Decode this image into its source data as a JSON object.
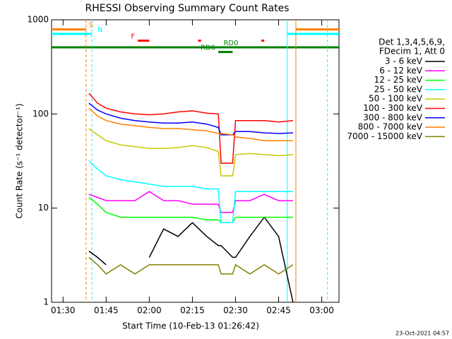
{
  "chart_data": {
    "type": "line",
    "title": "RHESSI Observing Summary Count Rates",
    "xlabel": "Start Time (10-Feb-13 01:26:42)",
    "ylabel": "Count Rate (s⁻¹ detector⁻¹)",
    "footer": "23-Oct-2021 04:57",
    "legend_title": [
      "Det 1,3,4,5,6,9,",
      "FDecim 1, Att 0"
    ],
    "log_y": true,
    "xlim": [
      "01:26",
      "03:06"
    ],
    "xticks": [
      "01:30",
      "01:45",
      "02:00",
      "02:15",
      "02:30",
      "02:45",
      "03:00"
    ],
    "ylim": [
      1,
      1000
    ],
    "yticks": [
      1,
      10,
      100,
      1000
    ],
    "x": [
      "01:39",
      "01:42",
      "01:45",
      "01:50",
      "01:55",
      "02:00",
      "02:05",
      "02:10",
      "02:15",
      "02:20",
      "02:24",
      "02:25",
      "02:29",
      "02:30",
      "02:35",
      "02:40",
      "02:45",
      "02:50"
    ],
    "series": [
      {
        "name": "3 - 6 keV",
        "color": "#000000",
        "values": [
          3.5,
          3,
          2.5,
          null,
          null,
          3,
          6,
          5,
          7,
          5,
          4,
          4,
          3,
          3,
          5,
          8,
          5,
          1
        ]
      },
      {
        "name": "6 - 12 keV",
        "color": "#ff00ff",
        "values": [
          14,
          13,
          12,
          12,
          12,
          15,
          12,
          12,
          11,
          11,
          11,
          9,
          9,
          12,
          12,
          14,
          12,
          12
        ]
      },
      {
        "name": "12 - 25 keV",
        "color": "#00ff00",
        "values": [
          13,
          11,
          9,
          8,
          8,
          8,
          8,
          8,
          8,
          7.5,
          7.5,
          7,
          7,
          8,
          8,
          8,
          8,
          8
        ]
      },
      {
        "name": "25 - 50 keV",
        "color": "#00ffff",
        "values": [
          32,
          26,
          22,
          20,
          19,
          18,
          17,
          17,
          17,
          16,
          16,
          7,
          7,
          15,
          15,
          15,
          15,
          15
        ]
      },
      {
        "name": "50 - 100 keV",
        "color": "#c8c800",
        "values": [
          70,
          60,
          52,
          47,
          45,
          43,
          43,
          44,
          46,
          44,
          40,
          22,
          22,
          37,
          38,
          37,
          36,
          37
        ]
      },
      {
        "name": "100 - 300 keV",
        "color": "#ff0000",
        "values": [
          165,
          130,
          115,
          105,
          100,
          98,
          100,
          105,
          108,
          102,
          100,
          30,
          30,
          85,
          85,
          85,
          82,
          85
        ]
      },
      {
        "name": "300 - 800 keV",
        "color": "#0000ff",
        "values": [
          130,
          110,
          100,
          90,
          85,
          82,
          80,
          80,
          82,
          78,
          72,
          60,
          60,
          65,
          65,
          63,
          62,
          63
        ]
      },
      {
        "name": "800 - 7000 keV",
        "color": "#ff8000",
        "values": [
          115,
          95,
          85,
          78,
          75,
          72,
          70,
          70,
          68,
          66,
          62,
          62,
          60,
          57,
          55,
          52,
          52,
          52
        ]
      },
      {
        "name": "7000 - 15000 keV",
        "color": "#808000",
        "values": [
          3,
          2.5,
          2,
          2.5,
          2,
          2.5,
          2.5,
          2.5,
          2.5,
          2.5,
          2.5,
          2,
          2,
          2.5,
          2,
          2.5,
          2,
          2.5
        ]
      }
    ],
    "flags": [
      {
        "label": "S",
        "color": "#ff8000",
        "level": 790,
        "spans": [
          [
            "01:26",
            "01:38"
          ],
          [
            "02:51",
            "03:06"
          ]
        ]
      },
      {
        "label": "N",
        "color": "#00ffff",
        "level": 708,
        "spans": [
          [
            "01:26",
            "01:40"
          ],
          [
            "02:48",
            "03:06"
          ]
        ]
      },
      {
        "label": "F",
        "color": "#ff0000",
        "level": 600,
        "spans": [
          [
            "01:56",
            "02:00"
          ],
          [
            "02:17",
            "02:18"
          ],
          [
            "02:39",
            "02:40"
          ]
        ]
      },
      {
        "label": "RD0",
        "color": "#008000",
        "level": 510,
        "spans": [
          [
            "01:26",
            "03:06"
          ]
        ]
      },
      {
        "label": "RD6",
        "color": "#008000",
        "level": 455,
        "spans": [
          [
            "02:24",
            "02:29"
          ]
        ]
      }
    ],
    "vlines": [
      {
        "x": "01:38",
        "color": "#ff8000",
        "dash": true
      },
      {
        "x": "01:40",
        "color": "#00ffff",
        "dash": true
      },
      {
        "x": "02:48",
        "color": "#00ffff",
        "dash": false
      },
      {
        "x": "02:51",
        "color": "#ff8000",
        "dash": false
      },
      {
        "x": "03:02",
        "color": "#00ffff",
        "dash": true
      }
    ]
  }
}
